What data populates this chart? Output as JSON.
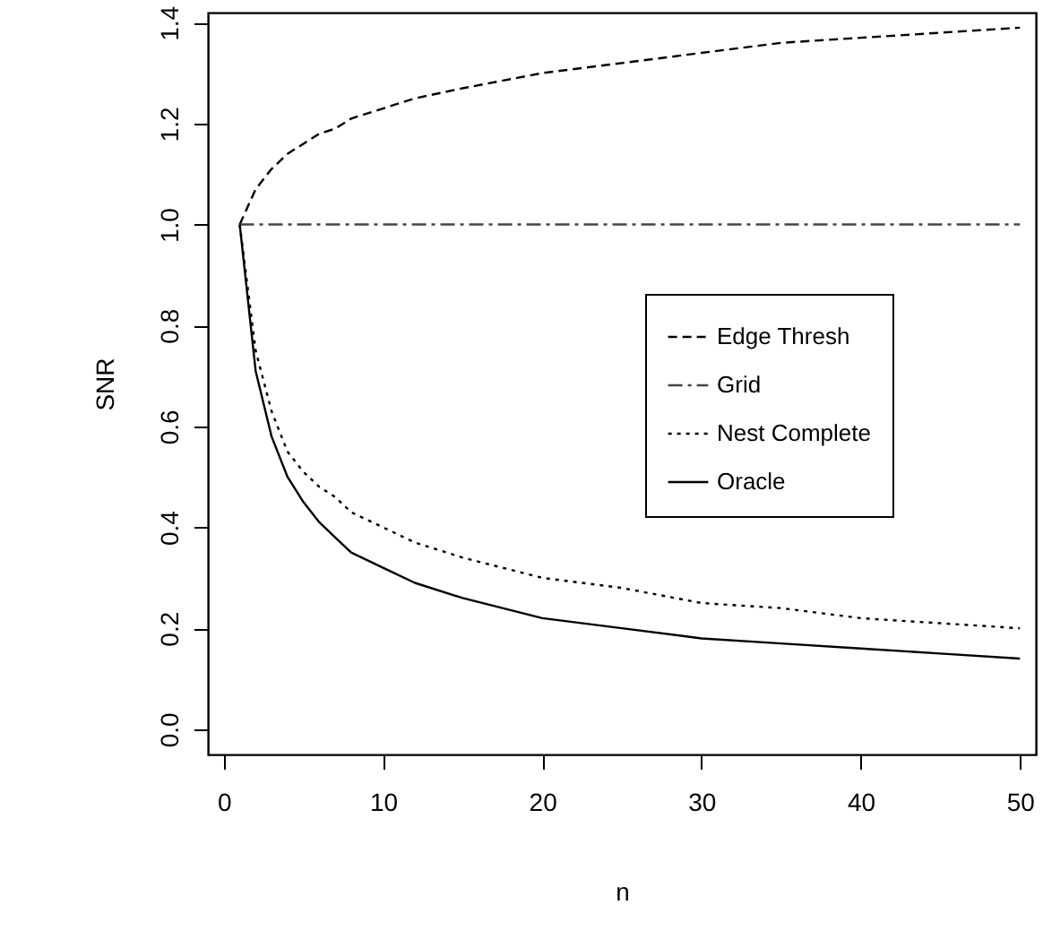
{
  "chart_data": {
    "type": "line",
    "xlabel": "n",
    "ylabel": "SNR",
    "x": [
      1,
      2,
      3,
      4,
      5,
      6,
      7,
      8,
      10,
      12,
      15,
      20,
      25,
      30,
      35,
      40,
      45,
      50
    ],
    "series": [
      {
        "name": "Edge Thresh",
        "color": "#000000",
        "line_style": "dashed",
        "values": [
          1,
          1.07,
          1.11,
          1.14,
          1.16,
          1.18,
          1.19,
          1.21,
          1.23,
          1.25,
          1.27,
          1.3,
          1.32,
          1.34,
          1.36,
          1.37,
          1.38,
          1.39
        ]
      },
      {
        "name": "Grid",
        "color": "#444444",
        "line_style": "dashdot",
        "values": [
          1,
          1,
          1,
          1,
          1,
          1,
          1,
          1,
          1,
          1,
          1,
          1,
          1,
          1,
          1,
          1,
          1,
          1
        ]
      },
      {
        "name": "Nest Complete",
        "color": "#000000",
        "line_style": "dotted",
        "values": [
          1,
          0.75,
          0.63,
          0.55,
          0.51,
          0.48,
          0.46,
          0.43,
          0.4,
          0.37,
          0.34,
          0.3,
          0.28,
          0.25,
          0.24,
          0.22,
          0.21,
          0.2
        ]
      },
      {
        "name": "Oracle",
        "color": "#000000",
        "line_style": "solid",
        "values": [
          1,
          0.71,
          0.58,
          0.5,
          0.45,
          0.41,
          0.38,
          0.35,
          0.32,
          0.29,
          0.26,
          0.22,
          0.2,
          0.18,
          0.17,
          0.16,
          0.15,
          0.14
        ]
      }
    ],
    "xlim": [
      -1,
      51
    ],
    "xticks": [
      0,
      10,
      20,
      30,
      40,
      50
    ],
    "ylim": [
      -0.05,
      1.42
    ],
    "yticks": [
      {
        "value": 0,
        "label": "0.0"
      },
      {
        "value": 0.2,
        "label": "0.2"
      },
      {
        "value": 0.4,
        "label": "0.4"
      },
      {
        "value": 0.6,
        "label": "0.6"
      },
      {
        "value": 0.8,
        "label": "0.8"
      },
      {
        "value": 1,
        "label": "1.0"
      },
      {
        "value": 1.2,
        "label": "1.2"
      },
      {
        "value": 1.4,
        "label": "1.4"
      }
    ],
    "grid": false,
    "legend": "right",
    "marker": "none"
  }
}
